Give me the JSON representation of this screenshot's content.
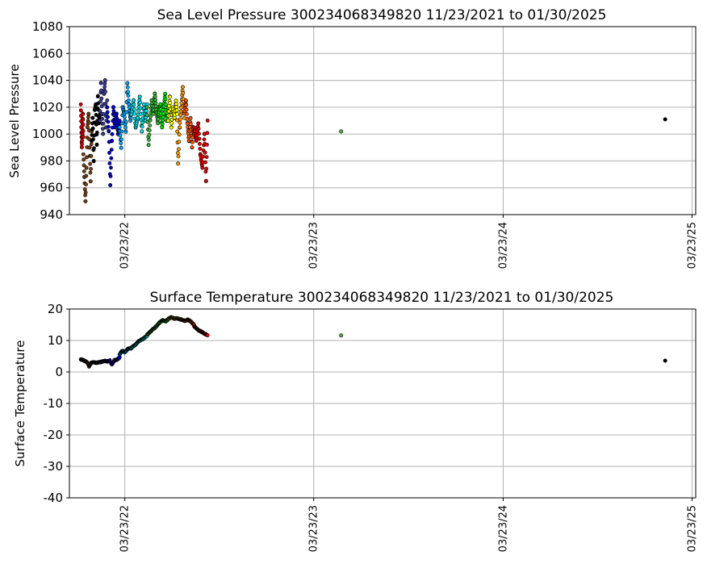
{
  "chart_data": [
    {
      "type": "scatter",
      "title": "Sea Level Pressure 300234068349820  11/23/2021 to 01/30/2025",
      "ylabel": "Sea Level Pressure",
      "xlabel": "",
      "ylim": [
        940,
        1080
      ],
      "yticks": [
        940,
        960,
        980,
        1000,
        1020,
        1040,
        1060,
        1080
      ],
      "xlim": [
        "2021-12-06",
        "2025-03-30"
      ],
      "xticks": [
        {
          "date": "2022-03-23",
          "label": "03/23/22"
        },
        {
          "date": "2023-03-23",
          "label": "03/23/23"
        },
        {
          "date": "2024-03-23",
          "label": "03/23/24"
        },
        {
          "date": "2025-03-23",
          "label": "03/23/25"
        }
      ],
      "grid": true,
      "marker_edge_color": "#000000",
      "segments": [
        {
          "start": "2021-12-28",
          "end": "2022-01-02",
          "color": "#dd0000",
          "points": [
            [
              "2021-12-28",
              1022
            ],
            [
              "2021-12-29",
              1005
            ],
            [
              "2021-12-30",
              990
            ],
            [
              "2021-12-31",
              1000
            ],
            [
              "2022-01-01",
              1015
            ],
            [
              "2022-01-02",
              998
            ]
          ]
        },
        {
          "start": "2022-01-02",
          "end": "2022-01-18",
          "color": "#7a3f12",
          "points": [
            [
              "2022-01-02",
              985
            ],
            [
              "2022-01-04",
              968
            ],
            [
              "2022-01-06",
              950
            ],
            [
              "2022-01-08",
              975
            ],
            [
              "2022-01-10",
              1005
            ],
            [
              "2022-01-12",
              1015
            ],
            [
              "2022-01-14",
              990
            ],
            [
              "2022-01-16",
              965
            ],
            [
              "2022-01-18",
              1002
            ]
          ]
        },
        {
          "start": "2022-01-18",
          "end": "2022-02-03",
          "color": "#000000",
          "points": [
            [
              "2022-01-18",
              995
            ],
            [
              "2022-01-20",
              1012
            ],
            [
              "2022-01-22",
              980
            ],
            [
              "2022-01-24",
              1018
            ],
            [
              "2022-01-26",
              1022
            ],
            [
              "2022-01-28",
              992
            ],
            [
              "2022-01-30",
              1028
            ],
            [
              "2022-02-01",
              1008
            ],
            [
              "2022-02-03",
              1015
            ]
          ]
        },
        {
          "start": "2022-02-03",
          "end": "2022-02-17",
          "color": "#3c3c9a",
          "points": [
            [
              "2022-02-03",
              1010
            ],
            [
              "2022-02-05",
              1038
            ],
            [
              "2022-02-07",
              1015
            ],
            [
              "2022-02-09",
              1000
            ],
            [
              "2022-02-11",
              1030
            ],
            [
              "2022-02-13",
              1040
            ],
            [
              "2022-02-15",
              1005
            ],
            [
              "2022-02-17",
              1025
            ]
          ]
        },
        {
          "start": "2022-02-17",
          "end": "2022-03-13",
          "color": "#0000dd",
          "points": [
            [
              "2022-02-17",
              1020
            ],
            [
              "2022-02-20",
              1002
            ],
            [
              "2022-02-23",
              962
            ],
            [
              "2022-02-26",
              995
            ],
            [
              "2022-03-01",
              1020
            ],
            [
              "2022-03-04",
              1005
            ],
            [
              "2022-03-07",
              1015
            ],
            [
              "2022-03-10",
              1000
            ],
            [
              "2022-03-13",
              1010
            ]
          ]
        },
        {
          "start": "2022-03-13",
          "end": "2022-04-05",
          "color": "#00aaff",
          "points": [
            [
              "2022-03-13",
              1005
            ],
            [
              "2022-03-16",
              990
            ],
            [
              "2022-03-19",
              1020
            ],
            [
              "2022-03-22",
              1015
            ],
            [
              "2022-03-25",
              1002
            ],
            [
              "2022-03-28",
              1038
            ],
            [
              "2022-03-31",
              1022
            ],
            [
              "2022-04-03",
              1010
            ],
            [
              "2022-04-05",
              1018
            ]
          ]
        },
        {
          "start": "2022-04-05",
          "end": "2022-05-05",
          "color": "#00e5ee",
          "points": [
            [
              "2022-04-05",
              1015
            ],
            [
              "2022-04-09",
              1025
            ],
            [
              "2022-04-13",
              1005
            ],
            [
              "2022-04-17",
              1012
            ],
            [
              "2022-04-21",
              1028
            ],
            [
              "2022-04-25",
              1002
            ],
            [
              "2022-04-29",
              1022
            ],
            [
              "2022-05-02",
              1010
            ],
            [
              "2022-05-05",
              1022
            ]
          ]
        },
        {
          "start": "2022-05-05",
          "end": "2022-05-28",
          "color": "#33bb33",
          "points": [
            [
              "2022-05-05",
              1020
            ],
            [
              "2022-05-08",
              992
            ],
            [
              "2022-05-11",
              1010
            ],
            [
              "2022-05-14",
              1025
            ],
            [
              "2022-05-17",
              1015
            ],
            [
              "2022-05-20",
              1030
            ],
            [
              "2022-05-23",
              1018
            ],
            [
              "2022-05-26",
              1008
            ],
            [
              "2022-05-28",
              1020
            ]
          ]
        },
        {
          "start": "2022-05-28",
          "end": "2022-06-15",
          "color": "#00ee00",
          "points": [
            [
              "2022-05-28",
              1015
            ],
            [
              "2022-05-31",
              1022
            ],
            [
              "2022-06-03",
              1005
            ],
            [
              "2022-06-06",
              1018
            ],
            [
              "2022-06-09",
              1030
            ],
            [
              "2022-06-12",
              1010
            ],
            [
              "2022-06-15",
              1020
            ]
          ]
        },
        {
          "start": "2022-06-15",
          "end": "2022-07-02",
          "color": "#ffff00",
          "points": [
            [
              "2022-06-15",
              1010
            ],
            [
              "2022-06-18",
              1028
            ],
            [
              "2022-06-21",
              1005
            ],
            [
              "2022-06-24",
              1020
            ],
            [
              "2022-06-27",
              1012
            ],
            [
              "2022-06-30",
              1025
            ],
            [
              "2022-07-02",
              1015
            ]
          ]
        },
        {
          "start": "2022-07-02",
          "end": "2022-07-16",
          "color": "#ff9900",
          "points": [
            [
              "2022-07-02",
              1010
            ],
            [
              "2022-07-04",
              978
            ],
            [
              "2022-07-07",
              1005
            ],
            [
              "2022-07-10",
              1020
            ],
            [
              "2022-07-13",
              1035
            ],
            [
              "2022-07-16",
              1012
            ]
          ]
        },
        {
          "start": "2022-07-16",
          "end": "2022-08-04",
          "color": "#ff5500",
          "points": [
            [
              "2022-07-16",
              1015
            ],
            [
              "2022-07-19",
              1025
            ],
            [
              "2022-07-22",
              1008
            ],
            [
              "2022-07-25",
              995
            ],
            [
              "2022-07-28",
              1012
            ],
            [
              "2022-07-31",
              990
            ],
            [
              "2022-08-02",
              1005
            ],
            [
              "2022-08-04",
              1000
            ]
          ]
        },
        {
          "start": "2022-08-04",
          "end": "2022-08-30",
          "color": "#ee0000",
          "points": [
            [
              "2022-08-04",
              1005
            ],
            [
              "2022-08-08",
              995
            ],
            [
              "2022-08-12",
              1008
            ],
            [
              "2022-08-16",
              985
            ],
            [
              "2022-08-20",
              975
            ],
            [
              "2022-08-24",
              1000
            ],
            [
              "2022-08-27",
              965
            ],
            [
              "2022-08-30",
              1010
            ]
          ]
        }
      ],
      "isolated_points": [
        {
          "date": "2023-05-15",
          "value": 1002,
          "color": "#55aa44"
        },
        {
          "date": "2025-01-30",
          "value": 1011,
          "color": "#000000"
        }
      ]
    },
    {
      "type": "scatter",
      "title": "Surface Temperature 300234068349820  11/23/2021 to 01/30/2025",
      "ylabel": "Surface Temperature",
      "xlabel": "",
      "ylim": [
        -40,
        20
      ],
      "yticks": [
        -40,
        -30,
        -20,
        -10,
        0,
        10,
        20
      ],
      "xlim": [
        "2021-12-06",
        "2025-03-30"
      ],
      "xticks": [
        {
          "date": "2022-03-23",
          "label": "03/23/22"
        },
        {
          "date": "2023-03-23",
          "label": "03/23/23"
        },
        {
          "date": "2024-03-23",
          "label": "03/23/24"
        },
        {
          "date": "2025-03-23",
          "label": "03/23/25"
        }
      ],
      "grid": true,
      "marker_edge_color": "#000000",
      "segments": [
        {
          "start": "2021-12-28",
          "end": "2022-01-02",
          "color": "#dd0000",
          "points": [
            [
              "2021-12-28",
              4.0
            ],
            [
              "2021-12-31",
              3.9
            ],
            [
              "2022-01-02",
              3.7
            ]
          ]
        },
        {
          "start": "2022-01-02",
          "end": "2022-01-18",
          "color": "#7a3f12",
          "points": [
            [
              "2022-01-02",
              3.7
            ],
            [
              "2022-01-06",
              3.4
            ],
            [
              "2022-01-10",
              2.9
            ],
            [
              "2022-01-13",
              1.8
            ],
            [
              "2022-01-16",
              2.6
            ],
            [
              "2022-01-18",
              3.0
            ]
          ]
        },
        {
          "start": "2022-01-18",
          "end": "2022-02-03",
          "color": "#000000",
          "points": [
            [
              "2022-01-18",
              3.0
            ],
            [
              "2022-01-22",
              3.1
            ],
            [
              "2022-01-26",
              2.9
            ],
            [
              "2022-01-30",
              3.0
            ],
            [
              "2022-02-03",
              3.1
            ]
          ]
        },
        {
          "start": "2022-02-03",
          "end": "2022-02-17",
          "color": "#3c3c9a",
          "points": [
            [
              "2022-02-03",
              3.1
            ],
            [
              "2022-02-08",
              3.3
            ],
            [
              "2022-02-13",
              3.5
            ],
            [
              "2022-02-17",
              3.3
            ]
          ]
        },
        {
          "start": "2022-02-17",
          "end": "2022-03-13",
          "color": "#0000dd",
          "points": [
            [
              "2022-02-17",
              3.3
            ],
            [
              "2022-02-22",
              3.6
            ],
            [
              "2022-02-26",
              2.4
            ],
            [
              "2022-03-03",
              3.7
            ],
            [
              "2022-03-08",
              3.9
            ],
            [
              "2022-03-13",
              4.6
            ]
          ]
        },
        {
          "start": "2022-03-13",
          "end": "2022-04-05",
          "color": "#00aaff",
          "points": [
            [
              "2022-03-13",
              5.5
            ],
            [
              "2022-03-18",
              6.8
            ],
            [
              "2022-03-23",
              6.2
            ],
            [
              "2022-03-29",
              7.3
            ],
            [
              "2022-04-05",
              7.6
            ]
          ]
        },
        {
          "start": "2022-04-05",
          "end": "2022-05-05",
          "color": "#00e5ee",
          "points": [
            [
              "2022-04-05",
              7.8
            ],
            [
              "2022-04-12",
              8.6
            ],
            [
              "2022-04-19",
              9.8
            ],
            [
              "2022-04-26",
              10.4
            ],
            [
              "2022-05-05",
              11.5
            ]
          ]
        },
        {
          "start": "2022-05-05",
          "end": "2022-05-28",
          "color": "#33bb33",
          "points": [
            [
              "2022-05-05",
              11.8
            ],
            [
              "2022-05-12",
              12.9
            ],
            [
              "2022-05-20",
              14.1
            ],
            [
              "2022-05-28",
              15.4
            ]
          ]
        },
        {
          "start": "2022-05-28",
          "end": "2022-06-15",
          "color": "#00ee00",
          "points": [
            [
              "2022-05-28",
              15.6
            ],
            [
              "2022-06-04",
              16.4
            ],
            [
              "2022-06-10",
              16.1
            ],
            [
              "2022-06-15",
              16.7
            ]
          ]
        },
        {
          "start": "2022-06-15",
          "end": "2022-07-02",
          "color": "#ffff00",
          "points": [
            [
              "2022-06-15",
              16.9
            ],
            [
              "2022-06-21",
              17.4
            ],
            [
              "2022-06-27",
              16.9
            ],
            [
              "2022-07-02",
              17.1
            ]
          ]
        },
        {
          "start": "2022-07-02",
          "end": "2022-07-16",
          "color": "#ff9900",
          "points": [
            [
              "2022-07-02",
              17.0
            ],
            [
              "2022-07-09",
              16.7
            ],
            [
              "2022-07-16",
              16.4
            ]
          ]
        },
        {
          "start": "2022-07-16",
          "end": "2022-08-04",
          "color": "#ff5500",
          "points": [
            [
              "2022-07-16",
              16.2
            ],
            [
              "2022-07-23",
              16.6
            ],
            [
              "2022-07-29",
              15.9
            ],
            [
              "2022-08-04",
              15.0
            ]
          ]
        },
        {
          "start": "2022-08-04",
          "end": "2022-08-30",
          "color": "#ee0000",
          "points": [
            [
              "2022-08-04",
              14.5
            ],
            [
              "2022-08-12",
              13.3
            ],
            [
              "2022-08-20",
              12.6
            ],
            [
              "2022-08-30",
              11.6
            ]
          ]
        }
      ],
      "isolated_points": [
        {
          "date": "2023-05-15",
          "value": 11.6,
          "color": "#55aa44"
        },
        {
          "date": "2025-01-30",
          "value": 3.6,
          "color": "#000000"
        }
      ]
    }
  ]
}
